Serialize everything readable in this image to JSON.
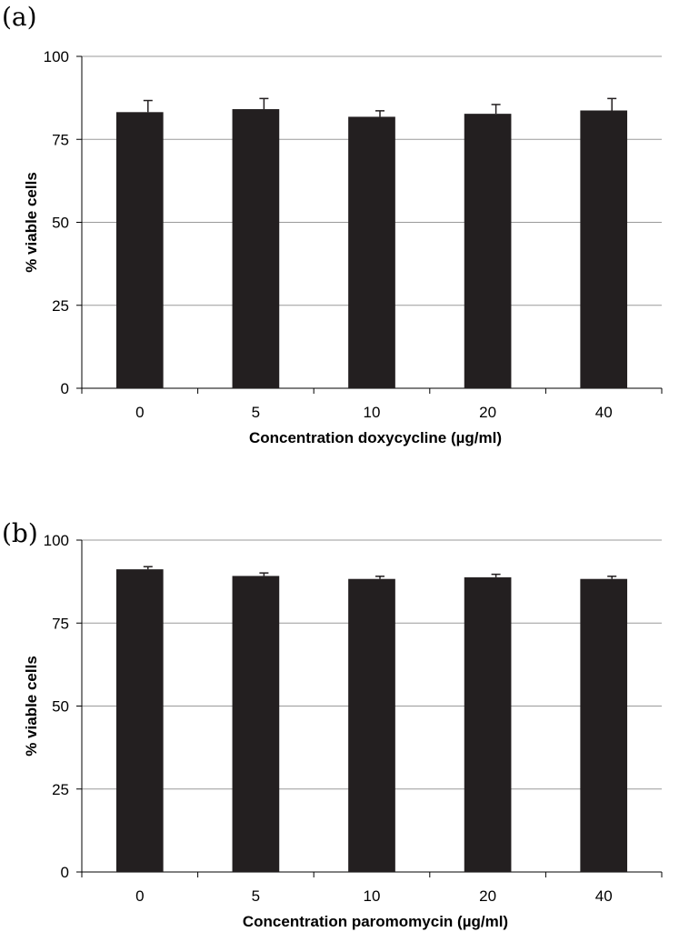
{
  "chart_data": [
    {
      "type": "bar",
      "panel_label": "(a)",
      "categories": [
        "0",
        "5",
        "10",
        "20",
        "40"
      ],
      "values": [
        83.2,
        84.1,
        81.8,
        82.7,
        83.7
      ],
      "errors": [
        3.5,
        3.2,
        1.8,
        2.8,
        3.6
      ],
      "xlabel": "Concentration doxycycline  (µg/ml)",
      "ylabel": "% viable cells",
      "ylim": [
        0,
        100
      ],
      "yticks": [
        0,
        25,
        50,
        75,
        100
      ],
      "grid": true,
      "bar_color": "#231f20"
    },
    {
      "type": "bar",
      "panel_label": "(b)",
      "categories": [
        "0",
        "5",
        "10",
        "20",
        "40"
      ],
      "values": [
        91.2,
        89.2,
        88.3,
        88.8,
        88.3
      ],
      "errors": [
        0.8,
        0.9,
        0.8,
        0.9,
        0.8
      ],
      "xlabel": "Concentration paromomycin  (µg/ml)",
      "ylabel": "% viable cells",
      "ylim": [
        0,
        100
      ],
      "yticks": [
        0,
        25,
        50,
        75,
        100
      ],
      "grid": true,
      "bar_color": "#231f20"
    }
  ]
}
